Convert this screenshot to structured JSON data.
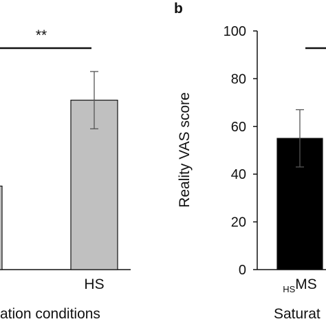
{
  "chart_data": [
    {
      "panel": "",
      "type": "bar",
      "categories": [
        "",
        "HS"
      ],
      "values": [
        35,
        71
      ],
      "errors": [
        null,
        12
      ],
      "bar_color": "#c0c0c0",
      "xlabel": "ration conditions",
      "significance": "**",
      "ylim": [
        0,
        100
      ],
      "grid": false,
      "legend": "none"
    },
    {
      "panel": "b",
      "type": "bar",
      "categories": [
        "MS"
      ],
      "category_subscripts": [
        "HS"
      ],
      "values": [
        55
      ],
      "errors": [
        12
      ],
      "bar_color": "#000000",
      "ylabel": "Reality VAS score",
      "xlabel": "Saturat",
      "yticks": [
        "0",
        "20",
        "40",
        "60",
        "80",
        "100"
      ],
      "ylim": [
        0,
        100
      ],
      "grid": false,
      "legend": "none"
    }
  ]
}
